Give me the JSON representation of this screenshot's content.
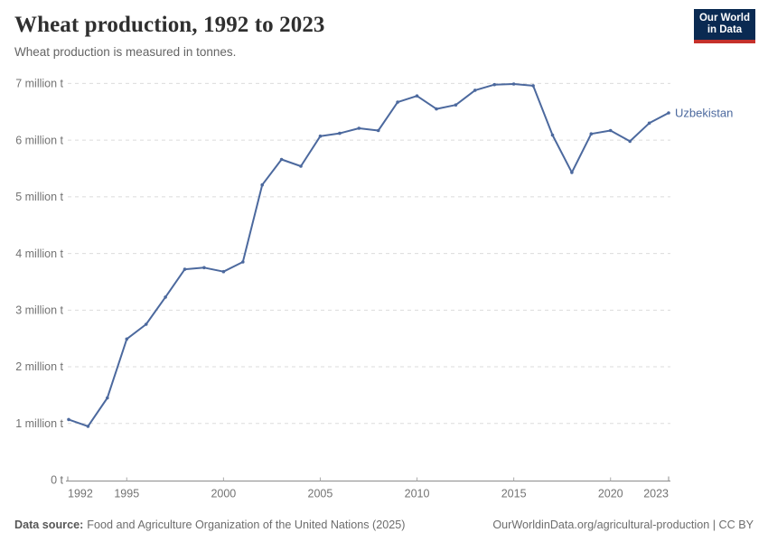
{
  "header": {
    "title": "Wheat production, 1992 to 2023",
    "subtitle": "Wheat production is measured in tonnes.",
    "logo": {
      "line1": "Our World",
      "line2": "in Data",
      "bg_color": "#0a2a52",
      "bar_color": "#c5312b"
    }
  },
  "chart_data": {
    "type": "line",
    "title": "Wheat production, 1992 to 2023",
    "ylabel": "",
    "xlabel": "",
    "unit": "tonnes",
    "grid": "horizontal dashed",
    "legend_position": "end-of-line label",
    "x": [
      1992,
      1993,
      1994,
      1995,
      1996,
      1997,
      1998,
      1999,
      2000,
      2001,
      2002,
      2003,
      2004,
      2005,
      2006,
      2007,
      2008,
      2009,
      2010,
      2011,
      2012,
      2013,
      2014,
      2015,
      2016,
      2017,
      2018,
      2019,
      2020,
      2021,
      2022,
      2023
    ],
    "series": [
      {
        "name": "Uzbekistan",
        "color": "#4c699e",
        "values": [
          1070000,
          950000,
          1450000,
          2490000,
          2750000,
          3230000,
          3720000,
          3750000,
          3680000,
          3850000,
          5210000,
          5660000,
          5540000,
          6070000,
          6120000,
          6210000,
          6170000,
          6670000,
          6780000,
          6550000,
          6620000,
          6880000,
          6980000,
          6990000,
          6960000,
          6090000,
          5430000,
          6110000,
          6170000,
          5980000,
          6300000,
          6480000
        ]
      }
    ],
    "xlim": [
      1992,
      2023
    ],
    "ylim": [
      0,
      7000000
    ],
    "yticks": [
      0,
      1000000,
      2000000,
      3000000,
      4000000,
      5000000,
      6000000,
      7000000
    ],
    "ytick_labels": [
      "0 t",
      "1 million t",
      "2 million t",
      "3 million t",
      "4 million t",
      "5 million t",
      "6 million t",
      "7 million t"
    ],
    "xticks": [
      1992,
      1995,
      2000,
      2005,
      2010,
      2015,
      2020,
      2023
    ],
    "gridline_color": "#dbdbdb",
    "axis_color": "#8c8c8c",
    "tick_label_color": "#737373"
  },
  "footer": {
    "source_label": "Data source:",
    "source_text": "Food and Agriculture Organization of the United Nations (2025)",
    "right_text": "OurWorldinData.org/agricultural-production | CC BY"
  }
}
